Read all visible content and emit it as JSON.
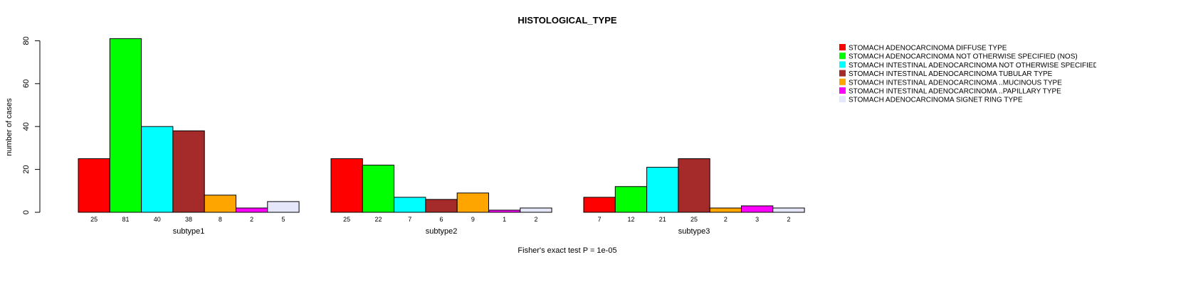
{
  "chart_data": {
    "type": "bar",
    "title": "HISTOLOGICAL_TYPE",
    "ylabel": "number of cases",
    "footnote": "Fisher's exact test P = 1e-05",
    "ylim": [
      0,
      80
    ],
    "yticks": [
      0,
      20,
      40,
      60,
      80
    ],
    "grid": false,
    "legend_position": "top-right",
    "groups": [
      "subtype1",
      "subtype2",
      "subtype3"
    ],
    "series": [
      {
        "name": "STOMACH  ADENOCARCINOMA  DIFFUSE TYPE",
        "color": "#ff0000",
        "values": [
          25,
          25,
          7
        ]
      },
      {
        "name": "STOMACH  ADENOCARCINOMA  NOT OTHERWISE SPECIFIED (NOS)",
        "color": "#00ff00",
        "values": [
          81,
          22,
          12
        ]
      },
      {
        "name": "STOMACH  INTESTINAL ADENOCARCINOMA  NOT OTHERWISE SPECIFIED (NOS)",
        "color": "#00ffff",
        "values": [
          40,
          7,
          21
        ]
      },
      {
        "name": "STOMACH  INTESTINAL ADENOCARCINOMA  TUBULAR TYPE",
        "color": "#a52a2a",
        "values": [
          38,
          6,
          25
        ]
      },
      {
        "name": "STOMACH  INTESTINAL ADENOCARCINOMA ..MUCINOUS TYPE",
        "color": "#ffa500",
        "values": [
          8,
          9,
          2
        ]
      },
      {
        "name": "STOMACH  INTESTINAL ADENOCARCINOMA ..PAPILLARY TYPE",
        "color": "#ff00ff",
        "values": [
          2,
          1,
          3
        ]
      },
      {
        "name": "STOMACH ADENOCARCINOMA  SIGNET RING TYPE",
        "color": "#e6e6fa",
        "values": [
          5,
          2,
          2
        ]
      }
    ]
  }
}
